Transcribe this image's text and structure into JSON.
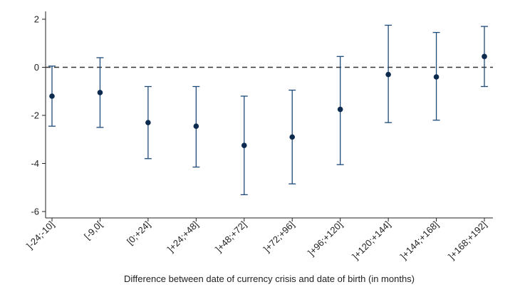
{
  "chart_data": {
    "type": "scatter",
    "subtype": "coefficient-plot-with-error-bars",
    "title": "",
    "xlabel": "Difference between date of currency crisis and date of birth (in months)",
    "ylabel": "",
    "categories": [
      "]-24;-10]",
      "[-9,0[",
      "[0;+24]",
      "]+24;+48]",
      "]+48;+72]",
      "]+72;+96]",
      "]+96;+120]",
      "]+120;+144]",
      "]+144;+168]",
      "]+168;+192]"
    ],
    "values": [
      -1.2,
      -1.05,
      -2.3,
      -2.45,
      -3.25,
      -2.9,
      -1.75,
      -0.3,
      -0.4,
      0.45
    ],
    "ci_lower": [
      -2.45,
      -2.5,
      -3.8,
      -4.15,
      -5.3,
      -4.85,
      -4.05,
      -2.3,
      -2.2,
      -0.8
    ],
    "ci_upper": [
      0.05,
      0.4,
      -0.8,
      -0.8,
      -1.2,
      -0.95,
      0.45,
      1.75,
      1.45,
      1.7
    ],
    "yticks": [
      -6,
      -4,
      -2,
      0,
      2
    ],
    "ylim": [
      -6.3,
      2.3
    ],
    "reference_line": {
      "y": 0,
      "style": "dashed"
    },
    "grid": false,
    "colors": {
      "marker": "#0d2a4f",
      "errorbar": "#1e4a7a",
      "axis": "#222222",
      "refline": "#333333"
    }
  }
}
